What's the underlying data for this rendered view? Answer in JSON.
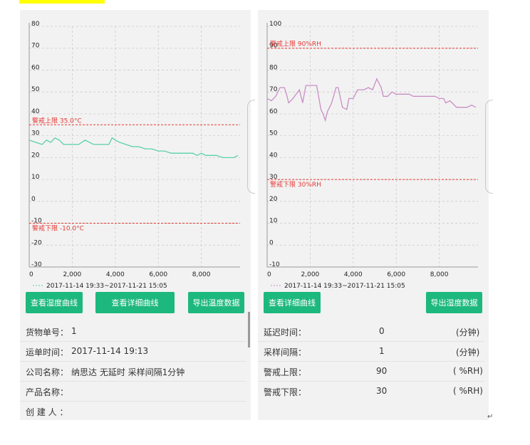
{
  "left": {
    "chart_data": {
      "type": "line",
      "yticks": [
        "80",
        "70",
        "60",
        "50",
        "40",
        "30",
        "20",
        "10",
        "0",
        "-10",
        "-20",
        "-30"
      ],
      "xticks": [
        "0",
        "2,000",
        "4,000",
        "6,000",
        "8,000"
      ],
      "ylim": [
        -30,
        80
      ],
      "xlim": [
        0,
        9800
      ],
      "upper_limit": {
        "value": 35,
        "label": "警戒上限 35.0°C"
      },
      "lower_limit": {
        "value": -10,
        "label": "警戒下限 -10.0°C"
      },
      "legend": "2017-11-14 19:33~2017-11-21 15:05",
      "series": [
        {
          "x": [
            0,
            300,
            600,
            800,
            1000,
            1200,
            1400,
            1600,
            1800,
            2000,
            2300,
            2600,
            2800,
            3000,
            3200,
            3400,
            3700,
            3850,
            4000,
            4200,
            4500,
            4800,
            5100,
            5400,
            5700,
            6000,
            6300,
            6600,
            7000,
            7300,
            7600,
            7800,
            8000,
            8200,
            8500,
            8700,
            9000,
            9300,
            9500,
            9700
          ],
          "y": [
            28,
            27,
            26,
            28,
            27,
            29,
            28,
            26,
            26,
            26,
            26,
            28,
            27,
            26,
            26,
            26,
            26,
            29,
            28,
            27,
            26,
            25,
            25,
            24,
            24,
            23,
            23,
            22,
            22,
            22,
            22,
            21,
            22,
            21,
            21,
            21,
            20,
            20,
            20,
            21
          ],
          "color": "#5ad1a6"
        }
      ]
    },
    "buttons": [
      "查看湿度曲线",
      "查看详细曲线",
      "导出温度数据"
    ],
    "info": [
      {
        "label": "货物单号：",
        "value": "1"
      },
      {
        "label": "运单时间：",
        "value": "2017-11-14  19:13"
      },
      {
        "label": "公司名称：",
        "value": "纳思达 无延时 采样间隔1分钟"
      },
      {
        "label": "产品名称：",
        "value": ""
      },
      {
        "label": "创 建 人 ：",
        "value": ""
      }
    ]
  },
  "right": {
    "chart_data": {
      "type": "line",
      "yticks": [
        "100",
        "90",
        "80",
        "70",
        "60",
        "50",
        "40",
        "30",
        "20",
        "10",
        "0",
        "-10"
      ],
      "xticks": [
        "0",
        "2,000",
        "4,000",
        "6,000",
        "8,000"
      ],
      "ylim": [
        -10,
        100
      ],
      "xlim": [
        0,
        9800
      ],
      "upper_limit": {
        "value": 90,
        "label": "警戒上限 90%RH"
      },
      "lower_limit": {
        "value": 30,
        "label": "警戒下限 30%RH"
      },
      "legend": "2017-11-14 19:33~2017-11-21 15:05",
      "series": [
        {
          "x": [
            0,
            200,
            400,
            600,
            800,
            900,
            1000,
            1200,
            1500,
            1650,
            1800,
            2000,
            2200,
            2300,
            2500,
            2600,
            2700,
            2800,
            3000,
            3200,
            3300,
            3500,
            3700,
            3800,
            4000,
            4200,
            4500,
            4700,
            4900,
            5100,
            5300,
            5400,
            5600,
            5800,
            6000,
            6300,
            6600,
            6800,
            7100,
            7300,
            7600,
            7800,
            8000,
            8200,
            8300,
            8500,
            8800,
            9100,
            9300,
            9500,
            9700
          ],
          "y": [
            67,
            66,
            68,
            72,
            72,
            69,
            65,
            67,
            71,
            65,
            73,
            73,
            73,
            73,
            62,
            60,
            57,
            61,
            65,
            72,
            72,
            63,
            62,
            67,
            67,
            71,
            71,
            72,
            71,
            76,
            72,
            68,
            68,
            70,
            69,
            69,
            69,
            68,
            68,
            68,
            68,
            68,
            67,
            67,
            65,
            66,
            63,
            63,
            63,
            64,
            63
          ],
          "color": "#c98ec5"
        }
      ]
    },
    "buttons": [
      "查看详细曲线",
      "导出湿度数据"
    ],
    "info": [
      {
        "label": "延迟时间：",
        "value": "0",
        "unit": "(分钟)"
      },
      {
        "label": "采样间隔：",
        "value": "1",
        "unit": "(分钟)"
      },
      {
        "label": "警戒上限：",
        "value": "90",
        "unit": "( %RH)"
      },
      {
        "label": "警戒下限：",
        "value": "30",
        "unit": "( %RH)"
      }
    ]
  },
  "colors": {
    "button": "#1db87d",
    "limit_line": "#e53935",
    "grid": "#cccccc"
  },
  "page_mark": "↵"
}
